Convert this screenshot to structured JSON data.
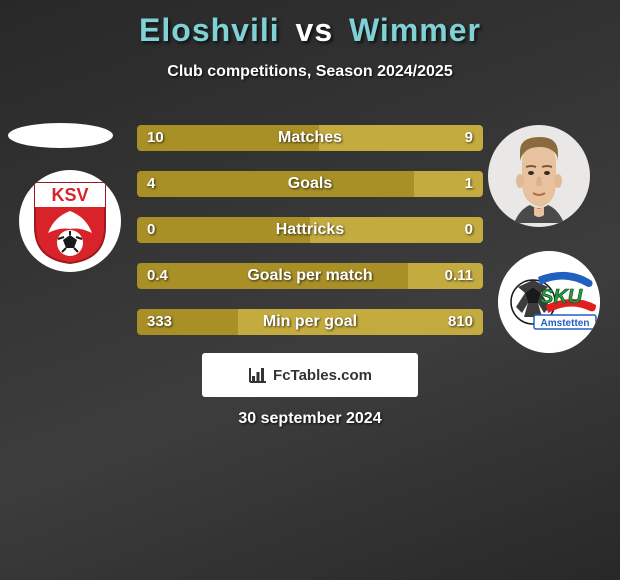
{
  "title_left": "Eloshvili",
  "title_vs": "vs",
  "title_right": "Wimmer",
  "title_color_left": "#7fd1d6",
  "title_color_vs": "#ffffff",
  "title_color_right": "#7fd1d6",
  "subtitle": "Club competitions, Season 2024/2025",
  "background_gradient_from": "#282828",
  "background_gradient_to": "#3d3d3d",
  "stats": [
    {
      "label": "Matches",
      "left_val": "10",
      "right_val": "9",
      "left_pct": 52.6,
      "right_pct": 47.4
    },
    {
      "label": "Goals",
      "left_val": "4",
      "right_val": "1",
      "left_pct": 80.0,
      "right_pct": 20.0
    },
    {
      "label": "Hattricks",
      "left_val": "0",
      "right_val": "0",
      "left_pct": 50.0,
      "right_pct": 50.0
    },
    {
      "label": "Goals per match",
      "left_val": "0.4",
      "right_val": "0.11",
      "left_pct": 78.4,
      "right_pct": 21.6
    },
    {
      "label": "Min per goal",
      "left_val": "333",
      "right_val": "810",
      "left_pct": 29.1,
      "right_pct": 70.9
    }
  ],
  "bar_color_left": "#a88f26",
  "bar_color_right": "#c4ab3f",
  "brand": "FcTables.com",
  "date": "30 september 2024",
  "left_club_name": "KSV",
  "right_club_name": "SKU Amstetten",
  "right_club_colors": {
    "blue": "#2060c0",
    "red": "#e02020",
    "green": "#20a040"
  }
}
